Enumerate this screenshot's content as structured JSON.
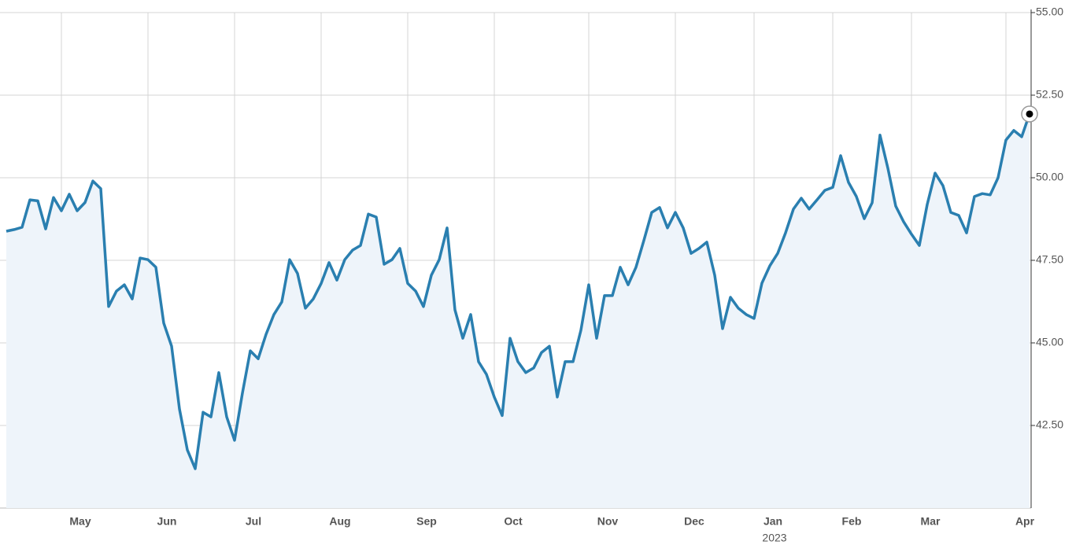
{
  "chart_data": {
    "type": "line",
    "values": [
      48.38,
      48.43,
      48.5,
      49.33,
      49.3,
      48.45,
      49.4,
      49.0,
      49.5,
      49.0,
      49.25,
      49.9,
      49.67,
      46.1,
      46.57,
      46.76,
      46.33,
      47.57,
      47.52,
      47.29,
      45.6,
      44.9,
      43.0,
      41.76,
      41.19,
      42.9,
      42.76,
      44.1,
      42.76,
      42.05,
      43.48,
      44.76,
      44.52,
      45.26,
      45.86,
      46.24,
      47.52,
      47.1,
      46.05,
      46.33,
      46.8,
      47.43,
      46.9,
      47.52,
      47.81,
      47.95,
      48.9,
      48.81,
      47.38,
      47.52,
      47.86,
      46.8,
      46.57,
      46.1,
      47.05,
      47.52,
      48.48,
      46.0,
      45.14,
      45.86,
      44.43,
      44.05,
      43.36,
      42.8,
      45.14,
      44.43,
      44.1,
      44.24,
      44.71,
      44.9,
      43.36,
      44.43,
      44.43,
      45.38,
      46.76,
      45.14,
      46.43,
      46.43,
      47.29,
      46.76,
      47.29,
      48.1,
      48.95,
      49.1,
      48.48,
      48.95,
      48.48,
      47.71,
      47.86,
      48.05,
      47.05,
      45.43,
      46.38,
      46.05,
      45.86,
      45.74,
      46.81,
      47.33,
      47.71,
      48.33,
      49.05,
      49.38,
      49.05,
      49.33,
      49.62,
      49.71,
      50.67,
      49.86,
      49.43,
      48.76,
      49.24,
      51.29,
      50.29,
      49.14,
      48.67,
      48.29,
      47.95,
      49.19,
      50.14,
      49.76,
      48.95,
      48.86,
      48.33,
      49.43,
      49.52,
      49.48,
      50.0,
      51.14,
      51.43,
      51.24,
      51.93
    ],
    "color": "#2a7fb0",
    "xlim": [
      0,
      130
    ],
    "xticks": [
      {
        "value": 7,
        "label": "May"
      },
      {
        "value": 18,
        "label": "Jun"
      },
      {
        "value": 29,
        "label": "Jul"
      },
      {
        "value": 40,
        "label": "Aug"
      },
      {
        "value": 51,
        "label": "Sep"
      },
      {
        "value": 62,
        "label": "Oct"
      },
      {
        "value": 74,
        "label": "Nov"
      },
      {
        "value": 85,
        "label": "Dec"
      },
      {
        "value": 95,
        "label": "Jan"
      },
      {
        "value": 105,
        "label": "Feb"
      },
      {
        "value": 115,
        "label": "Mar"
      },
      {
        "value": 127,
        "label": "Apr"
      }
    ],
    "year_label": "2023",
    "ylim": [
      40,
      55
    ],
    "yticks": [
      {
        "value": 42.5,
        "label": "42.50"
      },
      {
        "value": 45,
        "label": "45.00"
      },
      {
        "value": 47.5,
        "label": "47.50"
      },
      {
        "value": 50,
        "label": "50.00"
      },
      {
        "value": 52.5,
        "label": "52.50"
      },
      {
        "value": 55,
        "label": "55.00"
      }
    ],
    "grid": true
  }
}
